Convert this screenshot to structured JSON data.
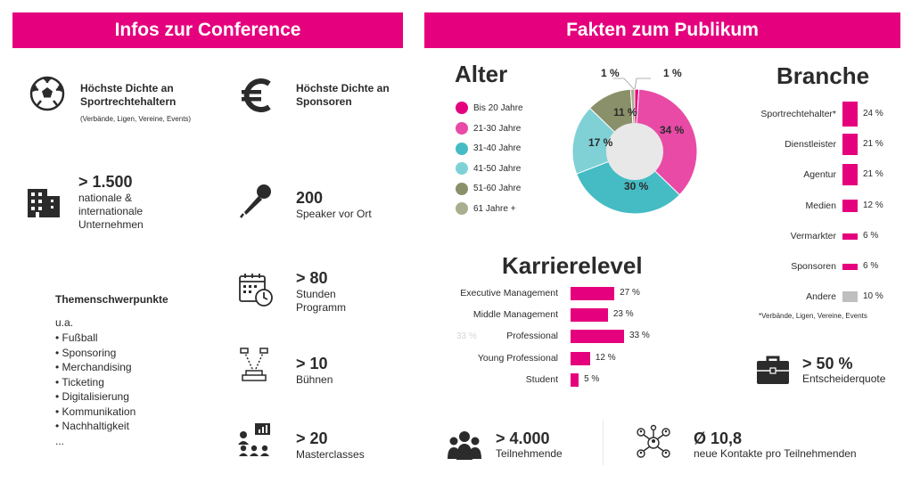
{
  "colors": {
    "accent": "#e5007d",
    "grey_bar": "#bfbfbf",
    "dark": "#2b2b2b"
  },
  "left": {
    "title": "Infos zur Conference",
    "items": [
      {
        "icon": "soccer-ball-icon",
        "title": "Höchste Dichte an Sportrechtehaltern",
        "note": "(Verbände, Ligen, Vereine, Events)"
      },
      {
        "icon": "euro-icon",
        "title": "Höchste Dichte an Sponsoren"
      },
      {
        "icon": "building-icon",
        "value": "> 1.500",
        "text": "nationale & internationale Unternehmen"
      },
      {
        "icon": "microphone-icon",
        "value": "200",
        "text": "Speaker vor Ort"
      },
      {
        "icon": "calendar-clock-icon",
        "value": "> 80",
        "text": "Stunden Programm"
      },
      {
        "icon": "stage-icon",
        "value": "> 10",
        "text": "Bühnen"
      },
      {
        "icon": "masterclass-icon",
        "value": "> 20",
        "text": "Masterclasses"
      }
    ],
    "topics": {
      "heading": "Themenschwerpunkte",
      "intro": "u.a.",
      "list": [
        "• Fußball",
        "• Sponsoring",
        "• Merchandising",
        "• Ticketing",
        "• Digitalisierung",
        "• Kommunikation",
        "• Nachhaltigkeit",
        "..."
      ]
    }
  },
  "right": {
    "title": "Fakten zum Publikum",
    "stats": [
      {
        "icon": "briefcase-icon",
        "value": "> 50 %",
        "text": "Entscheiderquote"
      },
      {
        "icon": "audience-icon",
        "value": "> 4.000",
        "text": "Teilnehmende"
      },
      {
        "icon": "network-icon",
        "value": "Ø 10,8",
        "text": "neue Kontakte pro Teilnehmenden"
      }
    ]
  },
  "chart_data": [
    {
      "type": "pie",
      "title": "Alter",
      "legend_position": "left",
      "categories": [
        "Bis 20 Jahre",
        "21-30 Jahre",
        "31-40 Jahre",
        "41-50 Jahre",
        "51-60 Jahre",
        "61 Jahre +"
      ],
      "values": [
        1,
        34,
        30,
        17,
        11,
        1
      ],
      "labels": [
        "1 %",
        "34 %",
        "30 %",
        "17 %",
        "11 %",
        "1 %"
      ],
      "colors": [
        "#e5007d",
        "#e94aa6",
        "#45bcc4",
        "#7fd1d6",
        "#8a916a",
        "#a9af8e"
      ]
    },
    {
      "type": "bar",
      "orientation": "horizontal",
      "title": "Karrierelevel",
      "categories": [
        "Executive Management",
        "Middle Management",
        "Professional",
        "Young Professional",
        "Student"
      ],
      "values": [
        27,
        23,
        33,
        12,
        5
      ],
      "labels": [
        "27 %",
        "23 %",
        "33 %",
        "12 %",
        "5 %"
      ],
      "ghost_label": "33 %",
      "color": "#e5007d"
    },
    {
      "type": "bar",
      "orientation": "horizontal",
      "title": "Branche",
      "categories": [
        "Sportrechtehalter*",
        "Dienstleister",
        "Agentur",
        "Medien",
        "Vermarkter",
        "Sponsoren",
        "Andere"
      ],
      "values": [
        24,
        21,
        21,
        12,
        6,
        6,
        10
      ],
      "labels": [
        "24 %",
        "21 %",
        "21 %",
        "12 %",
        "6 %",
        "6 %",
        "10 %"
      ],
      "colors": [
        "#e5007d",
        "#e5007d",
        "#e5007d",
        "#e5007d",
        "#e5007d",
        "#e5007d",
        "#bfbfbf"
      ],
      "footnote": "*Verbände, Ligen, Vereine, Events"
    }
  ]
}
